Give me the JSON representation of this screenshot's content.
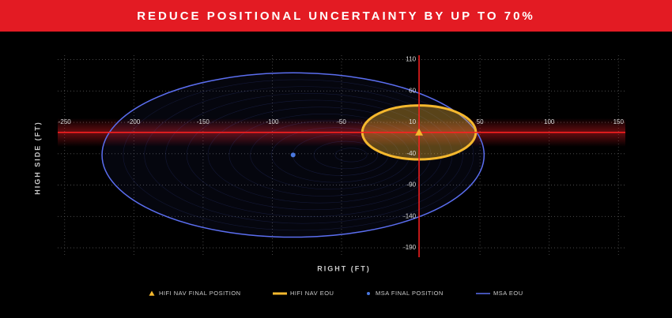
{
  "chart_data": {
    "type": "scatter",
    "title": "REDUCE POSITIONAL UNCERTAINTY BY UP TO 70%",
    "x_label": "RIGHT (FT)",
    "y_label": "HIGH SIDE (FT)",
    "xlim": [
      -255,
      155
    ],
    "ylim": [
      -205,
      117
    ],
    "xticks": [
      -250,
      -200,
      -150,
      -100,
      -50,
      50,
      100,
      150
    ],
    "yticks": [
      110,
      60,
      10,
      -40,
      -90,
      -140,
      -190
    ],
    "grid": true,
    "series": [
      {
        "name": "MSA EOU",
        "color": "#5b6ef0",
        "shape": "ellipse",
        "x": [
          -85
        ],
        "values": [
          -42
        ],
        "radius_x": [
          138
        ],
        "radius_y": [
          131
        ]
      },
      {
        "name": "HIFI NAV EOU",
        "color": "#f5b82e",
        "shape": "ellipse",
        "x": [
          6
        ],
        "values": [
          -6
        ],
        "radius_x": [
          41
        ],
        "radius_y": [
          43
        ]
      },
      {
        "name": "MSA FINAL POSITION",
        "color": "#4a78e0",
        "shape": "dot",
        "x": [
          -85
        ],
        "values": [
          -42
        ]
      },
      {
        "name": "HIFI NAV FINAL POSITION",
        "color": "#f5b82e",
        "shape": "triangle",
        "x": [
          6
        ],
        "values": [
          -6
        ]
      }
    ]
  }
}
